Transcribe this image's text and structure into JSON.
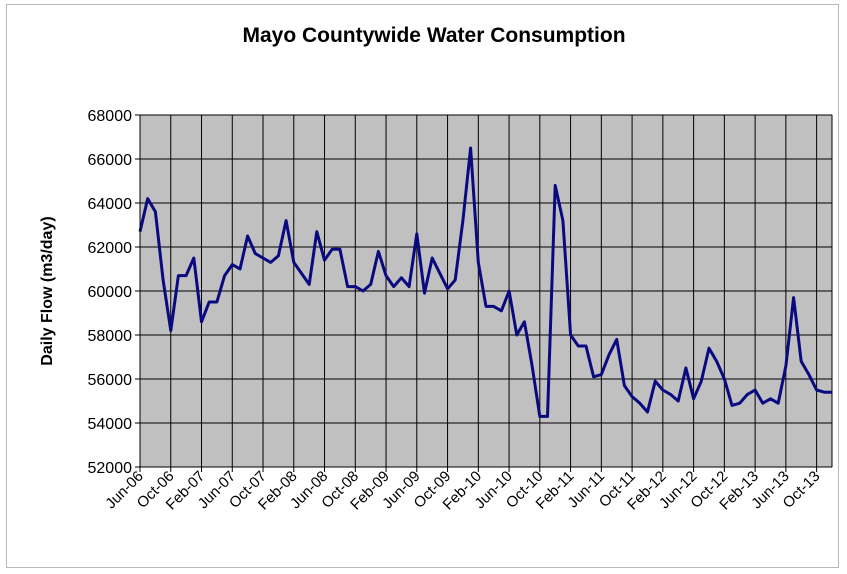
{
  "chart_data": {
    "type": "line",
    "title": "Mayo Countywide Water Consumption",
    "xlabel": "",
    "ylabel": "Daily Flow (m3/day)",
    "ylim": [
      52000,
      68000
    ],
    "y_ticks": [
      52000,
      54000,
      56000,
      58000,
      60000,
      62000,
      64000,
      66000,
      68000
    ],
    "x_tick_labels": [
      "Jun-06",
      "Oct-06",
      "Feb-07",
      "Jun-07",
      "Oct-07",
      "Feb-08",
      "Jun-08",
      "Oct-08",
      "Feb-09",
      "Jun-09",
      "Oct-09",
      "Feb-10",
      "Jun-10",
      "Oct-10",
      "Feb-11",
      "Jun-11",
      "Oct-11",
      "Feb-12",
      "Jun-12",
      "Oct-12",
      "Feb-13",
      "Jun-13",
      "Oct-13"
    ],
    "grid": true,
    "colors": {
      "plot_background": "#c0c0c0",
      "grid": "#000000",
      "line": "#0a0a80"
    },
    "series": [
      {
        "x": [
          "Jun-06",
          "Jul-06",
          "Aug-06",
          "Sep-06",
          "Oct-06",
          "Nov-06",
          "Dec-06",
          "Jan-07",
          "Feb-07",
          "Mar-07",
          "Apr-07",
          "May-07",
          "Jun-07",
          "Jul-07",
          "Aug-07",
          "Sep-07",
          "Oct-07",
          "Nov-07",
          "Dec-07",
          "Jan-08",
          "Feb-08",
          "Mar-08",
          "Apr-08",
          "May-08",
          "Jun-08",
          "Jul-08",
          "Aug-08",
          "Sep-08",
          "Oct-08",
          "Nov-08",
          "Dec-08",
          "Jan-09",
          "Feb-09",
          "Mar-09",
          "Apr-09",
          "May-09",
          "Jun-09",
          "Jul-09",
          "Aug-09",
          "Sep-09",
          "Oct-09",
          "Nov-09",
          "Dec-09",
          "Jan-10",
          "Feb-10",
          "Mar-10",
          "Apr-10",
          "May-10",
          "Jun-10",
          "Jul-10",
          "Aug-10",
          "Sep-10",
          "Oct-10",
          "Nov-10",
          "Dec-10",
          "Jan-11",
          "Feb-11",
          "Mar-11",
          "Apr-11",
          "May-11",
          "Jun-11",
          "Jul-11",
          "Aug-11",
          "Sep-11",
          "Oct-11",
          "Nov-11",
          "Dec-11",
          "Jan-12",
          "Feb-12",
          "Mar-12",
          "Apr-12",
          "May-12",
          "Jun-12",
          "Jul-12",
          "Aug-12",
          "Sep-12",
          "Oct-12",
          "Nov-12",
          "Dec-12",
          "Jan-13",
          "Feb-13",
          "Mar-13",
          "Apr-13",
          "May-13",
          "Jun-13",
          "Jul-13",
          "Aug-13",
          "Sep-13",
          "Oct-13",
          "Nov-13",
          "Dec-13"
        ],
        "values": [
          62700,
          64200,
          63600,
          60500,
          58200,
          60700,
          60700,
          61500,
          58600,
          59500,
          59500,
          60700,
          61200,
          61000,
          62500,
          61700,
          61500,
          61300,
          61600,
          63200,
          61300,
          60800,
          60300,
          62700,
          61400,
          61900,
          61900,
          60200,
          60200,
          60000,
          60300,
          61800,
          60700,
          60200,
          60600,
          60200,
          62600,
          59900,
          61500,
          60800,
          60100,
          60500,
          63200,
          66500,
          61300,
          59300,
          59300,
          59100,
          60000,
          58000,
          58600,
          56600,
          54300,
          54300,
          64800,
          63200,
          58000,
          57500,
          57500,
          56100,
          56200,
          57100,
          57800,
          55700,
          55200,
          54900,
          54500,
          55900,
          55500,
          55300,
          55000,
          56500,
          55100,
          55900,
          57400,
          56800,
          56000,
          54800,
          54900,
          55300,
          55500,
          54900,
          55100,
          54900,
          56600,
          59700,
          56800,
          56200,
          55500,
          55400,
          55400
        ]
      }
    ]
  }
}
